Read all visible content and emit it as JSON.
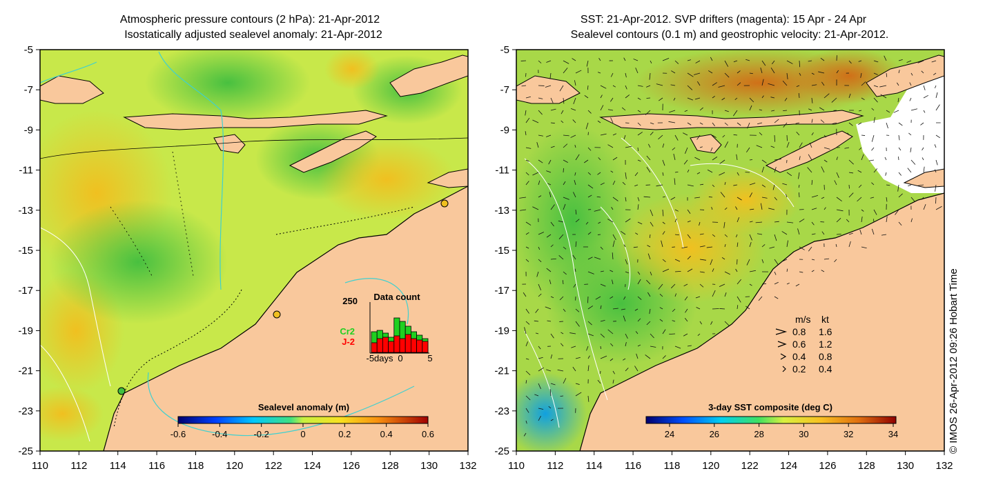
{
  "left_panel": {
    "title_line1": "Atmospheric pressure contours (2 hPa): 21-Apr-2012",
    "title_line2": "Isostatically adjusted sealevel anomaly: 21-Apr-2012",
    "colorbar_title": "Sealevel anomaly (m)",
    "colorbar_ticks": [
      "-0.6",
      "-0.4",
      "-0.2",
      "0",
      "0.2",
      "0.4",
      "0.6"
    ],
    "inset": {
      "title": "Data count",
      "ymax_label": "250",
      "legend_cr2": "Cr2",
      "legend_j2": "J-2",
      "x_label_left": "-5days",
      "x_label_mid": "0",
      "x_label_right": "5"
    }
  },
  "right_panel": {
    "title_line1": "SST: 21-Apr-2012. SVP drifters (magenta): 15 Apr - 24 Apr",
    "title_line2": "Sealevel contours (0.1 m) and geostrophic velocity: 21-Apr-2012.",
    "colorbar_title": "3-day SST composite (deg C)",
    "colorbar_ticks": [
      "24",
      "26",
      "28",
      "30",
      "32",
      "34"
    ],
    "speed_legend": {
      "header_ms": "m/s",
      "header_kt": "kt",
      "rows": [
        {
          "ms": "0.8",
          "kt": "1.6"
        },
        {
          "ms": "0.6",
          "kt": "1.2"
        },
        {
          "ms": "0.4",
          "kt": "0.8"
        },
        {
          "ms": "0.2",
          "kt": "0.4"
        }
      ]
    }
  },
  "axes": {
    "y_ticks": [
      "-5",
      "-7",
      "-9",
      "-11",
      "-13",
      "-15",
      "-17",
      "-19",
      "-21",
      "-23",
      "-25"
    ],
    "x_ticks": [
      "110",
      "112",
      "114",
      "116",
      "118",
      "120",
      "122",
      "124",
      "126",
      "128",
      "130",
      "132"
    ]
  },
  "credit": "© IMOS 26-Apr-2012 09:26 Hobart Time",
  "colors": {
    "land": "#f9c89c",
    "ocean_base": "#c8e65a",
    "coastline": "#000000",
    "contour_cyan": "#3fd0d0"
  }
}
